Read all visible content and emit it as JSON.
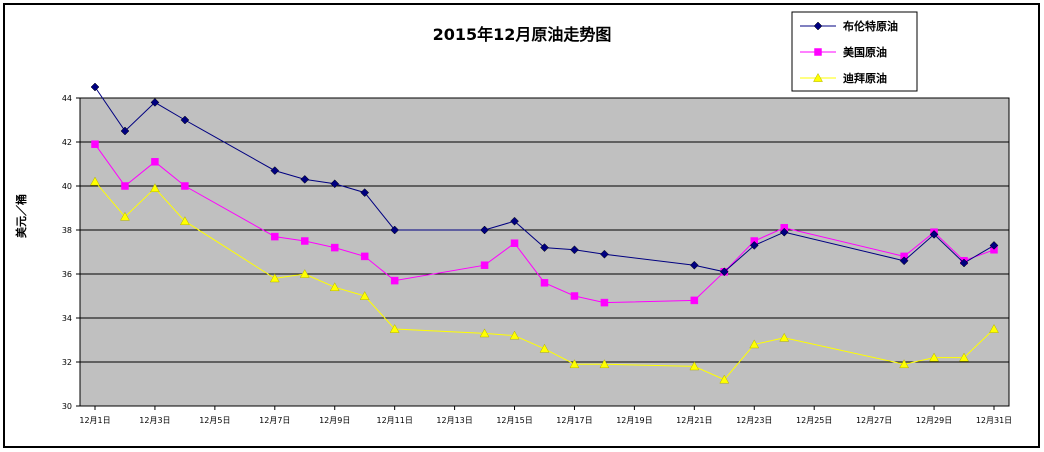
{
  "chart_data": {
    "type": "line",
    "title": "2015年12月原油走势图",
    "ylabel": "美元／桶",
    "xlabel": "",
    "ylim": [
      30,
      44
    ],
    "yticks": [
      30,
      32,
      34,
      36,
      38,
      40,
      42,
      44
    ],
    "x_ticks": [
      "12月1日",
      "12月3日",
      "12月5日",
      "12月7日",
      "12月9日",
      "12月11日",
      "12月13日",
      "12月15日",
      "12月17日",
      "12月19日",
      "12月21日",
      "12月23日",
      "12月25日",
      "12月27日",
      "12月29日",
      "12月31日"
    ],
    "x_range": [
      1,
      31
    ],
    "grid": true,
    "legend_position": "top-right",
    "plot_background": "#c0c0c0",
    "series": [
      {
        "name": "布伦特原油",
        "color": "#000080",
        "marker": "diamond",
        "points": [
          [
            1,
            44.5
          ],
          [
            2,
            42.5
          ],
          [
            3,
            43.8
          ],
          [
            4,
            43.0
          ],
          [
            7,
            40.7
          ],
          [
            8,
            40.3
          ],
          [
            9,
            40.1
          ],
          [
            10,
            39.7
          ],
          [
            11,
            38.0
          ],
          [
            14,
            38.0
          ],
          [
            15,
            38.4
          ],
          [
            16,
            37.2
          ],
          [
            17,
            37.1
          ],
          [
            18,
            36.9
          ],
          [
            21,
            36.4
          ],
          [
            22,
            36.1
          ],
          [
            23,
            37.3
          ],
          [
            24,
            37.9
          ],
          [
            28,
            36.6
          ],
          [
            29,
            37.8
          ],
          [
            30,
            36.5
          ],
          [
            31,
            37.3
          ]
        ]
      },
      {
        "name": "美国原油",
        "color": "#ff00ff",
        "marker": "square",
        "points": [
          [
            1,
            41.9
          ],
          [
            2,
            40.0
          ],
          [
            3,
            41.1
          ],
          [
            4,
            40.0
          ],
          [
            7,
            37.7
          ],
          [
            8,
            37.5
          ],
          [
            9,
            37.2
          ],
          [
            10,
            36.8
          ],
          [
            11,
            35.7
          ],
          [
            14,
            36.4
          ],
          [
            15,
            37.4
          ],
          [
            16,
            35.6
          ],
          [
            17,
            35.0
          ],
          [
            18,
            34.7
          ],
          [
            21,
            34.8
          ],
          [
            22,
            36.1
          ],
          [
            23,
            37.5
          ],
          [
            24,
            38.1
          ],
          [
            28,
            36.8
          ],
          [
            29,
            37.9
          ],
          [
            30,
            36.6
          ],
          [
            31,
            37.1
          ]
        ]
      },
      {
        "name": "迪拜原油",
        "color": "#ffff00",
        "marker": "triangle",
        "points": [
          [
            1,
            40.2
          ],
          [
            2,
            38.6
          ],
          [
            3,
            39.9
          ],
          [
            4,
            38.4
          ],
          [
            7,
            35.8
          ],
          [
            8,
            36.0
          ],
          [
            9,
            35.4
          ],
          [
            10,
            35.0
          ],
          [
            11,
            33.5
          ],
          [
            14,
            33.3
          ],
          [
            15,
            33.2
          ],
          [
            16,
            32.6
          ],
          [
            17,
            31.9
          ],
          [
            18,
            31.9
          ],
          [
            21,
            31.8
          ],
          [
            22,
            31.2
          ],
          [
            23,
            32.8
          ],
          [
            24,
            33.1
          ],
          [
            28,
            31.9
          ],
          [
            29,
            32.2
          ],
          [
            30,
            32.2
          ],
          [
            31,
            33.5
          ]
        ]
      }
    ]
  }
}
